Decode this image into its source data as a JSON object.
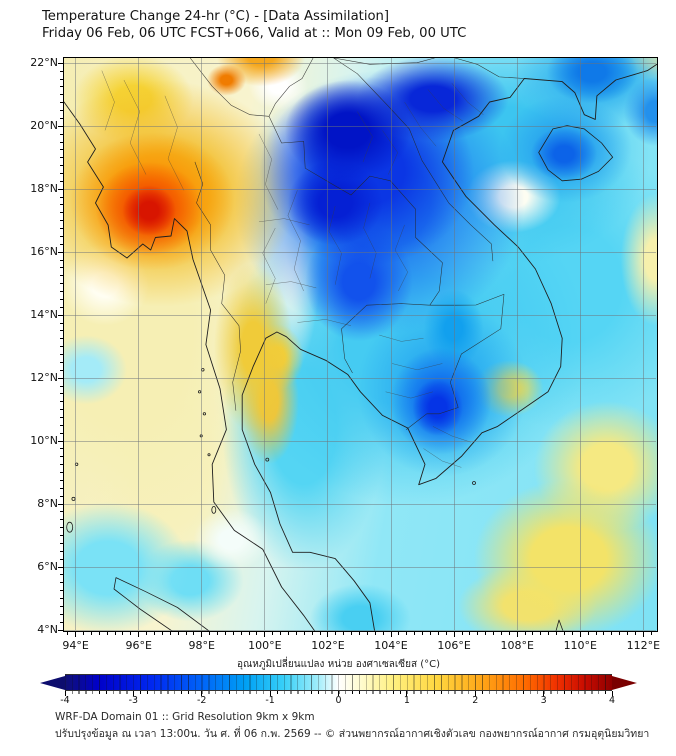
{
  "header": {
    "title": "Temperature Change 24-hr (°C) - [Data Assimilation]",
    "subtitle": "Friday 06 Feb, 06 UTC FCST+066, Valid at :: Mon 09 Feb, 00 UTC"
  },
  "map": {
    "lon_range": [
      93.6,
      112.4
    ],
    "lat_range": [
      4.0,
      22.2
    ],
    "x_ticks": [
      "94°E",
      "96°E",
      "98°E",
      "100°E",
      "102°E",
      "104°E",
      "106°E",
      "108°E",
      "110°E",
      "112°E"
    ],
    "x_tick_lons": [
      94,
      96,
      98,
      100,
      102,
      104,
      106,
      108,
      110,
      112
    ],
    "y_ticks": [
      "22°N",
      "20°N",
      "18°N",
      "16°N",
      "14°N",
      "12°N",
      "10°N",
      "8°N",
      "6°N",
      "4°N"
    ],
    "y_tick_lats": [
      22,
      20,
      18,
      16,
      14,
      12,
      10,
      8,
      6,
      4
    ],
    "base_gradient": "linear-gradient(100deg, #f5eeb6 0%, #f8f4cf 28%, #d8f4ef 42%, #90e7f6 58%, #7ee2f5 100%)",
    "field_layers": [
      {
        "lon": 96.3,
        "lat": 17.35,
        "rx": 0.85,
        "ry": 0.8,
        "c": "#d81500",
        "s": 35
      },
      {
        "lon": 96.3,
        "lat": 17.4,
        "rx": 1.7,
        "ry": 1.5,
        "c": "#f14a00",
        "s": 30
      },
      {
        "lon": 96.4,
        "lat": 17.65,
        "rx": 2.6,
        "ry": 2.2,
        "c": "#fb8c00",
        "s": 30
      },
      {
        "lon": 98.75,
        "lat": 21.5,
        "rx": 0.62,
        "ry": 0.5,
        "c": "#f07c00",
        "s": 30
      },
      {
        "lon": 99.85,
        "lat": 22.25,
        "rx": 1.4,
        "ry": 0.95,
        "c": "#f5a71d",
        "s": 30
      },
      {
        "lon": 105.45,
        "lat": 11.1,
        "rx": 0.8,
        "ry": 0.9,
        "c": "#0534e6",
        "s": 35
      },
      {
        "lon": 105.55,
        "lat": 11.3,
        "rx": 1.6,
        "ry": 1.7,
        "c": "#0f69ee",
        "s": 30
      },
      {
        "lon": 109.45,
        "lat": 19.15,
        "rx": 1.05,
        "ry": 0.85,
        "c": "#0c63e8",
        "s": 30
      },
      {
        "lon": 110.35,
        "lat": 21.75,
        "rx": 1.45,
        "ry": 1.0,
        "c": "#0f79e8",
        "s": 30
      },
      {
        "lon": 112.35,
        "lat": 20.5,
        "rx": 1.0,
        "ry": 1.1,
        "c": "#2390ec",
        "s": 30
      },
      {
        "lon": 102.6,
        "lat": 19.9,
        "rx": 2.0,
        "ry": 1.6,
        "c": "#0114c6",
        "s": 35
      },
      {
        "lon": 102.2,
        "lat": 17.6,
        "rx": 1.5,
        "ry": 1.35,
        "c": "#0520d4",
        "s": 35
      },
      {
        "lon": 105.3,
        "lat": 20.9,
        "rx": 2.4,
        "ry": 1.35,
        "c": "#0827d8",
        "s": 30
      },
      {
        "lon": 103.2,
        "lat": 18.6,
        "rx": 3.4,
        "ry": 3.0,
        "c": "#0b36e4",
        "s": 35
      },
      {
        "lon": 102.95,
        "lat": 15.1,
        "rx": 1.7,
        "ry": 1.9,
        "c": "#1252ec",
        "s": 30
      },
      {
        "lon": 105.95,
        "lat": 13.6,
        "rx": 0.95,
        "ry": 1.25,
        "c": "#12a0ee",
        "s": 30
      },
      {
        "lon": 96.7,
        "lat": 17.9,
        "rx": 4.3,
        "ry": 3.6,
        "c": "#f3bb22",
        "s": 35
      },
      {
        "lon": 95.8,
        "lat": 20.9,
        "rx": 1.9,
        "ry": 1.4,
        "c": "#f5d335",
        "s": 30
      },
      {
        "lon": 99.6,
        "lat": 13.0,
        "rx": 1.25,
        "ry": 2.7,
        "c": "#f0cb39",
        "s": 30
      },
      {
        "lon": 100.1,
        "lat": 11.3,
        "rx": 0.95,
        "ry": 2.0,
        "c": "#eec63b",
        "s": 30
      },
      {
        "lon": 100.35,
        "lat": 12.7,
        "rx": 0.85,
        "ry": 1.05,
        "c": "#f2d039",
        "s": 30
      },
      {
        "lon": 103.6,
        "lat": 17.6,
        "rx": 4.6,
        "ry": 4.2,
        "c": "#1e7af0",
        "s": 35
      },
      {
        "lon": 105.6,
        "lat": 11.7,
        "rx": 2.7,
        "ry": 2.8,
        "c": "#27a8f0",
        "s": 30
      },
      {
        "lon": 109.5,
        "lat": 19.3,
        "rx": 2.1,
        "ry": 1.7,
        "c": "#27a1ee",
        "s": 30
      },
      {
        "lon": 110.5,
        "lat": 21.6,
        "rx": 2.7,
        "ry": 1.6,
        "c": "#2fb0ee",
        "s": 30
      },
      {
        "lon": 107.7,
        "lat": 11.7,
        "rx": 1.1,
        "ry": 0.9,
        "c": "#f0db50",
        "s": 30
      },
      {
        "lon": 100.85,
        "lat": 16.8,
        "rx": 0.95,
        "ry": 4.6,
        "c": "#fcfcf0",
        "s": 30
      },
      {
        "lon": 101.7,
        "lat": 16.8,
        "rx": 1.1,
        "ry": 4.2,
        "c": "#5ad7f4",
        "s": 30
      },
      {
        "lon": 107.85,
        "lat": 17.8,
        "rx": 1.5,
        "ry": 1.15,
        "c": "#fdfdf2",
        "s": 30
      },
      {
        "lon": 100.4,
        "lat": 21.3,
        "rx": 0.95,
        "ry": 0.75,
        "c": "#ffffff",
        "s": 30
      },
      {
        "lon": 94.9,
        "lat": 15.0,
        "rx": 1.4,
        "ry": 1.3,
        "c": "#fffef2",
        "s": 30
      },
      {
        "lon": 98.9,
        "lat": 6.9,
        "rx": 1.2,
        "ry": 1.0,
        "c": "#f4fdfa",
        "s": 30
      },
      {
        "lon": 112.25,
        "lat": 22.15,
        "rx": 1.0,
        "ry": 0.7,
        "c": "#f7efa6",
        "s": 30
      },
      {
        "lon": 112.35,
        "lat": 15.8,
        "rx": 1.1,
        "ry": 2.1,
        "c": "#f7f0ac",
        "s": 30
      },
      {
        "lon": 109.6,
        "lat": 6.3,
        "rx": 3.0,
        "ry": 2.5,
        "c": "#f3e368",
        "s": 40
      },
      {
        "lon": 110.8,
        "lat": 9.2,
        "rx": 2.3,
        "ry": 2.1,
        "c": "#f5e982",
        "s": 35
      },
      {
        "lon": 108.3,
        "lat": 4.8,
        "rx": 2.2,
        "ry": 1.3,
        "c": "#f2e26e",
        "s": 35
      },
      {
        "lon": 103.0,
        "lat": 4.4,
        "rx": 1.6,
        "ry": 1.1,
        "c": "#49cff2",
        "s": 35
      },
      {
        "lon": 104.6,
        "lat": 13.2,
        "rx": 5.6,
        "ry": 5.2,
        "c": "#45cbf2",
        "s": 40
      },
      {
        "lon": 107.6,
        "lat": 19.2,
        "rx": 4.6,
        "ry": 3.6,
        "c": "#3cc5f0",
        "s": 40
      },
      {
        "lon": 109.6,
        "lat": 15.0,
        "rx": 4.2,
        "ry": 4.6,
        "c": "#55d5f4",
        "s": 40
      },
      {
        "lon": 101.2,
        "lat": 10.5,
        "rx": 2.6,
        "ry": 4.6,
        "c": "#54d5f3",
        "s": 40
      },
      {
        "lon": 95.0,
        "lat": 6.0,
        "rx": 2.6,
        "ry": 2.1,
        "c": "#7ae2f6",
        "s": 40
      },
      {
        "lon": 94.3,
        "lat": 12.3,
        "rx": 1.3,
        "ry": 1.1,
        "c": "#a4ebf8",
        "s": 35
      },
      {
        "lon": 97.6,
        "lat": 5.6,
        "rx": 1.7,
        "ry": 1.3,
        "c": "#6edef5",
        "s": 35
      },
      {
        "lon": 95.6,
        "lat": 13.5,
        "rx": 4.6,
        "ry": 6.6,
        "c": "#f6efb4",
        "s": 45
      },
      {
        "lon": 94.5,
        "lat": 18.5,
        "rx": 3.1,
        "ry": 4.1,
        "c": "#f5edb0",
        "s": 45
      },
      {
        "lon": 97.0,
        "lat": 9.2,
        "rx": 2.6,
        "ry": 4.1,
        "c": "#f7f1bc",
        "s": 45
      }
    ]
  },
  "colorbar": {
    "label": "อุณหภูมิเปลี่ยนแปลง หน่วย องศาเซลเซียส (°C)",
    "ticks": [
      "-4",
      "-3",
      "-2",
      "-1",
      "0",
      "1",
      "2",
      "3",
      "4"
    ],
    "min": -4,
    "max": 4,
    "arrow_left_color": "#0d0d6e",
    "arrow_right_color": "#7a0000",
    "stops": [
      {
        "p": 0,
        "c": "#101074"
      },
      {
        "p": 6,
        "c": "#0000c8"
      },
      {
        "p": 16,
        "c": "#0028f0"
      },
      {
        "p": 25,
        "c": "#0064f8"
      },
      {
        "p": 33,
        "c": "#00a0f4"
      },
      {
        "p": 40,
        "c": "#38d0f8"
      },
      {
        "p": 46,
        "c": "#9cecfa"
      },
      {
        "p": 50,
        "c": "#ffffff"
      },
      {
        "p": 54,
        "c": "#fffcd0"
      },
      {
        "p": 60,
        "c": "#fff080"
      },
      {
        "p": 68,
        "c": "#ffd740"
      },
      {
        "p": 76,
        "c": "#ffa718"
      },
      {
        "p": 84,
        "c": "#ff6c00"
      },
      {
        "p": 90,
        "c": "#f03000"
      },
      {
        "p": 95,
        "c": "#c80c00"
      },
      {
        "p": 100,
        "c": "#8f0000"
      }
    ]
  },
  "footer": {
    "line1": "WRF-DA Domain 01 :: Grid Resolution 9km x 9km",
    "line2": "ปรับปรุงข้อมูล ณ เวลา 13:00น. วัน ศ. ที่ 06 ก.พ. 2569 -- © ส่วนพยากรณ์อากาศเชิงตัวเลข กองพยากรณ์อากาศ กรมอุตุนิยมวิทยา"
  }
}
